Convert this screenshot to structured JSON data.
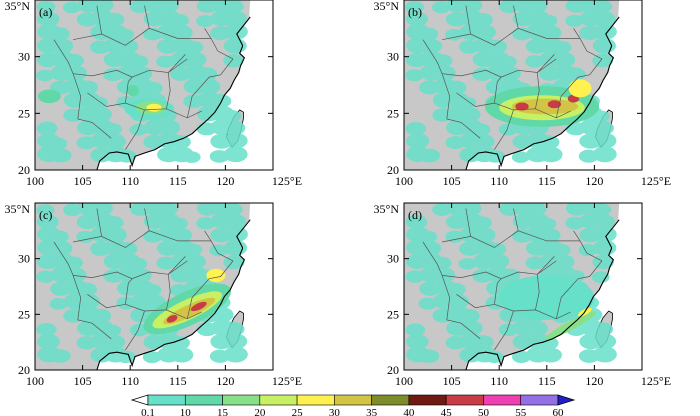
{
  "figure": {
    "panels": [
      {
        "label": "(a)",
        "rain": [
          {
            "lon": 112,
            "lat": 25.4,
            "rx": 2.6,
            "ry": 0.9,
            "level": 0
          },
          {
            "lon": 112.2,
            "lat": 25.5,
            "rx": 1.6,
            "ry": 0.6,
            "level": 2
          },
          {
            "lon": 112.5,
            "lat": 25.5,
            "rx": 0.8,
            "ry": 0.35,
            "level": 4
          },
          {
            "lon": 110.3,
            "lat": 27.0,
            "rx": 0.6,
            "ry": 0.5,
            "level": 1
          },
          {
            "lon": 101.5,
            "lat": 26.5,
            "rx": 1.2,
            "ry": 0.6,
            "level": 1
          }
        ]
      },
      {
        "label": "(b)",
        "rain": [
          {
            "lon": 114.5,
            "lat": 25.6,
            "rx": 6.0,
            "ry": 1.8,
            "level": 1
          },
          {
            "lon": 114.5,
            "lat": 25.5,
            "rx": 4.5,
            "ry": 1.1,
            "level": 3
          },
          {
            "lon": 114.8,
            "lat": 25.6,
            "rx": 3.5,
            "ry": 0.7,
            "level": 5
          },
          {
            "lon": 112.4,
            "lat": 25.6,
            "rx": 0.7,
            "ry": 0.35,
            "level": 8
          },
          {
            "lon": 115.8,
            "lat": 25.8,
            "rx": 0.7,
            "ry": 0.35,
            "level": 8
          },
          {
            "lon": 117.8,
            "lat": 26.3,
            "rx": 0.6,
            "ry": 0.35,
            "level": 8
          },
          {
            "lon": 118.5,
            "lat": 27.2,
            "rx": 1.2,
            "ry": 0.8,
            "level": 4
          }
        ]
      },
      {
        "label": "(c)",
        "rain": [
          {
            "lon": 116.0,
            "lat": 25.5,
            "rx": 5.0,
            "ry": 1.5,
            "level": 1,
            "rot": -25
          },
          {
            "lon": 116.0,
            "lat": 25.4,
            "rx": 4.0,
            "ry": 0.9,
            "level": 3,
            "rot": -25
          },
          {
            "lon": 116.2,
            "lat": 25.3,
            "rx": 3.0,
            "ry": 0.55,
            "level": 5,
            "rot": -25
          },
          {
            "lon": 114.4,
            "lat": 24.6,
            "rx": 0.6,
            "ry": 0.3,
            "level": 8,
            "rot": -25
          },
          {
            "lon": 117.2,
            "lat": 25.7,
            "rx": 0.9,
            "ry": 0.3,
            "level": 8,
            "rot": -25
          },
          {
            "lon": 119.0,
            "lat": 28.5,
            "rx": 1.0,
            "ry": 0.6,
            "level": 4
          }
        ]
      },
      {
        "label": "(d)",
        "rain": [
          {
            "lon": 115.0,
            "lat": 26.5,
            "rx": 5.0,
            "ry": 2.0,
            "level": 0
          },
          {
            "lon": 117.5,
            "lat": 24.0,
            "rx": 3.0,
            "ry": 0.4,
            "level": 2,
            "rot": -28
          },
          {
            "lon": 119.0,
            "lat": 25.2,
            "rx": 0.8,
            "ry": 0.25,
            "level": 4,
            "rot": -28
          }
        ]
      }
    ],
    "axis": {
      "lon_ticks": [
        "100",
        "105",
        "110",
        "115",
        "120"
      ],
      "lon_end_label": "125°E",
      "lat_ticks": [
        "20",
        "25",
        "30"
      ],
      "lat_top_label": "35°N",
      "lon_range": [
        100,
        125
      ],
      "lat_range": [
        20,
        35
      ]
    },
    "colorbar": {
      "labels": [
        "0.1",
        "10",
        "15",
        "20",
        "25",
        "30",
        "35",
        "40",
        "45",
        "50",
        "55",
        "60"
      ],
      "colors": [
        "#ffffff",
        "#66e0c8",
        "#60d8a8",
        "#88e088",
        "#c8f064",
        "#fff250",
        "#d2c444",
        "#7e8c2a",
        "#6e1a12",
        "#c83c46",
        "#ee40b0",
        "#9470e6",
        "#2020c8"
      ]
    },
    "map_colors": {
      "land": "#c8c8c8",
      "ocean": "#ffffff",
      "border": "#555555",
      "coast": "#000000"
    }
  }
}
